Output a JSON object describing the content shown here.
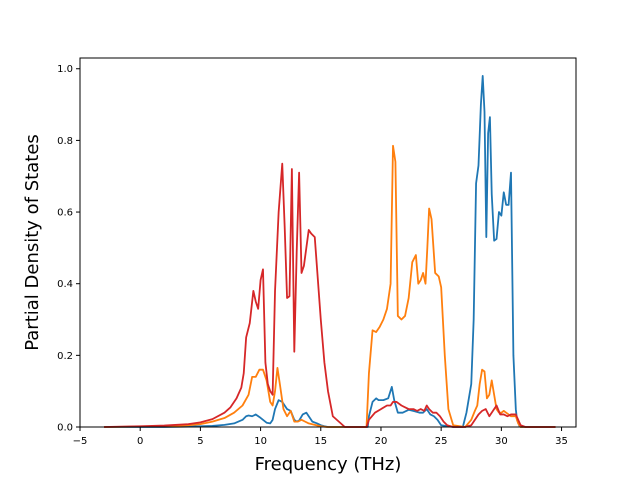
{
  "chart_data": {
    "type": "line",
    "title": "",
    "xlabel": "Frequency (THz)",
    "ylabel": "Partial Density of States",
    "xlim": [
      -5,
      36.2
    ],
    "ylim": [
      0,
      1.03
    ],
    "xticks": [
      -5,
      0,
      5,
      10,
      15,
      20,
      25,
      30,
      35
    ],
    "xtick_labels": [
      "−5",
      "0",
      "5",
      "10",
      "15",
      "20",
      "25",
      "30",
      "35"
    ],
    "yticks": [
      0,
      0.2,
      0.4,
      0.6,
      0.8,
      1.0
    ],
    "ytick_labels": [
      "0.0",
      "0.2",
      "0.4",
      "0.6",
      "0.8",
      "1.0"
    ],
    "grid": false,
    "legend": "none",
    "series": [
      {
        "color": "#1f77b4",
        "x": [
          -3,
          0,
          2,
          4,
          6,
          7,
          7.8,
          8.5,
          8.8,
          9.0,
          9.3,
          9.6,
          9.9,
          10.2,
          10.5,
          10.8,
          11.0,
          11.2,
          11.5,
          11.8,
          12.2,
          12.5,
          12.8,
          13.0,
          13.2,
          13.5,
          13.8,
          14.0,
          14.3,
          14.7,
          15.0,
          15.3,
          15.6,
          16,
          17,
          18.9,
          19.0,
          19.3,
          19.6,
          19.8,
          20.2,
          20.6,
          20.9,
          21.1,
          21.4,
          21.8,
          22.3,
          22.8,
          23.2,
          23.5,
          23.8,
          24.1,
          24.4,
          24.7,
          25.0,
          26.0,
          26.8,
          27.1,
          27.5,
          27.7,
          27.9,
          28.1,
          28.3,
          28.45,
          28.6,
          28.75,
          28.9,
          29.05,
          29.2,
          29.4,
          29.6,
          29.8,
          30.0,
          30.2,
          30.4,
          30.6,
          30.8,
          31.0,
          31.2,
          31.3,
          31.5,
          31.6,
          32,
          34.5
        ],
        "y": [
          0,
          0,
          0,
          0.001,
          0.003,
          0.006,
          0.01,
          0.02,
          0.03,
          0.032,
          0.03,
          0.035,
          0.028,
          0.02,
          0.012,
          0.01,
          0.02,
          0.05,
          0.075,
          0.07,
          0.05,
          0.045,
          0.02,
          0.015,
          0.018,
          0.035,
          0.04,
          0.03,
          0.015,
          0.01,
          0.005,
          0.002,
          0,
          0,
          0,
          0,
          0.03,
          0.07,
          0.08,
          0.075,
          0.075,
          0.08,
          0.112,
          0.075,
          0.04,
          0.04,
          0.048,
          0.044,
          0.04,
          0.04,
          0.05,
          0.035,
          0.03,
          0.02,
          0.005,
          0,
          0,
          0.04,
          0.12,
          0.3,
          0.68,
          0.73,
          0.9,
          0.98,
          0.88,
          0.53,
          0.82,
          0.865,
          0.65,
          0.52,
          0.525,
          0.6,
          0.59,
          0.655,
          0.62,
          0.62,
          0.71,
          0.2,
          0.05,
          0.02,
          0.003,
          0,
          0,
          0
        ]
      },
      {
        "color": "#ff7f0e",
        "x": [
          -3,
          0,
          2,
          4,
          5,
          6,
          7,
          7.8,
          8.5,
          9.0,
          9.3,
          9.6,
          9.9,
          10.2,
          10.5,
          10.8,
          11.0,
          11.2,
          11.4,
          11.6,
          11.9,
          12.2,
          12.5,
          12.8,
          13.1,
          13.4,
          13.7,
          14.0,
          14.5,
          15.0,
          15.5,
          16,
          17,
          18.8,
          19.0,
          19.3,
          19.6,
          19.9,
          20.2,
          20.5,
          20.8,
          21.0,
          21.2,
          21.4,
          21.7,
          22.0,
          22.3,
          22.6,
          22.9,
          23.1,
          23.3,
          23.5,
          23.7,
          23.85,
          24.0,
          24.2,
          24.5,
          24.8,
          25.0,
          25.3,
          25.6,
          26.0,
          27.0,
          27.5,
          27.8,
          28.0,
          28.2,
          28.4,
          28.6,
          28.8,
          29.0,
          29.2,
          29.4,
          29.6,
          29.8,
          30.0,
          30.2,
          30.4,
          30.6,
          30.8,
          31.0,
          31.2,
          31.4,
          31.6,
          32,
          34.5
        ],
        "y": [
          0,
          0.001,
          0.002,
          0.005,
          0.008,
          0.015,
          0.025,
          0.04,
          0.06,
          0.09,
          0.14,
          0.14,
          0.16,
          0.16,
          0.13,
          0.07,
          0.06,
          0.1,
          0.165,
          0.12,
          0.05,
          0.03,
          0.045,
          0.015,
          0.015,
          0.02,
          0.015,
          0.01,
          0.006,
          0.002,
          0,
          0,
          0,
          0,
          0.15,
          0.27,
          0.265,
          0.28,
          0.3,
          0.33,
          0.4,
          0.785,
          0.74,
          0.31,
          0.3,
          0.31,
          0.36,
          0.46,
          0.48,
          0.4,
          0.41,
          0.43,
          0.4,
          0.5,
          0.61,
          0.58,
          0.43,
          0.42,
          0.39,
          0.2,
          0.05,
          0.005,
          0,
          0.02,
          0.045,
          0.06,
          0.12,
          0.16,
          0.155,
          0.08,
          0.09,
          0.13,
          0.09,
          0.05,
          0.04,
          0.04,
          0.045,
          0.04,
          0.035,
          0.03,
          0.03,
          0.03,
          0.01,
          0,
          0,
          0
        ]
      },
      {
        "color": "#d62728",
        "x": [
          -3,
          0,
          2,
          4,
          5,
          6,
          7,
          7.5,
          8.0,
          8.4,
          8.6,
          8.8,
          9.1,
          9.4,
          9.6,
          9.8,
          10.0,
          10.2,
          10.4,
          10.6,
          10.8,
          11.0,
          11.2,
          11.5,
          11.8,
          12.0,
          12.2,
          12.4,
          12.6,
          12.8,
          13.0,
          13.2,
          13.4,
          13.6,
          13.8,
          14.0,
          14.2,
          14.5,
          15.0,
          15.3,
          15.6,
          16,
          17,
          18.8,
          19.0,
          19.5,
          20.0,
          20.5,
          20.8,
          21.0,
          21.3,
          21.7,
          22.0,
          22.3,
          22.7,
          23.0,
          23.3,
          23.6,
          23.8,
          24.0,
          24.3,
          24.6,
          24.9,
          25.2,
          25.5,
          26.0,
          27.0,
          27.5,
          27.8,
          28.1,
          28.4,
          28.7,
          29.0,
          29.3,
          29.6,
          29.9,
          30.2,
          30.5,
          30.8,
          31.0,
          31.2,
          31.4,
          31.6,
          32,
          34.5
        ],
        "y": [
          0,
          0.002,
          0.004,
          0.008,
          0.013,
          0.022,
          0.04,
          0.055,
          0.08,
          0.11,
          0.15,
          0.25,
          0.29,
          0.38,
          0.35,
          0.33,
          0.41,
          0.44,
          0.18,
          0.12,
          0.1,
          0.09,
          0.38,
          0.6,
          0.735,
          0.56,
          0.36,
          0.365,
          0.72,
          0.21,
          0.49,
          0.71,
          0.43,
          0.45,
          0.5,
          0.55,
          0.54,
          0.53,
          0.3,
          0.18,
          0.1,
          0.03,
          0,
          0,
          0.02,
          0.04,
          0.05,
          0.06,
          0.06,
          0.07,
          0.07,
          0.06,
          0.055,
          0.05,
          0.05,
          0.045,
          0.05,
          0.045,
          0.06,
          0.05,
          0.04,
          0.04,
          0.03,
          0.015,
          0.005,
          0,
          0,
          0.005,
          0.02,
          0.035,
          0.045,
          0.05,
          0.03,
          0.045,
          0.06,
          0.035,
          0.035,
          0.03,
          0.035,
          0.035,
          0.035,
          0.02,
          0.005,
          0,
          0
        ]
      }
    ]
  }
}
